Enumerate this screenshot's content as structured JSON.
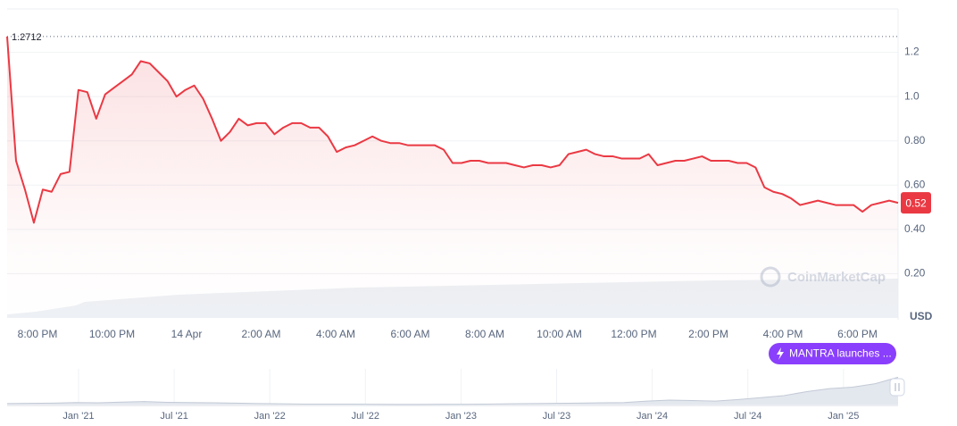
{
  "chart_data": {
    "type": "line",
    "series": [
      {
        "name": "MANTRA",
        "color": "#ea3943",
        "values": [
          1.2712,
          0.71,
          0.58,
          0.43,
          0.58,
          0.57,
          0.65,
          0.66,
          1.03,
          1.02,
          0.9,
          1.01,
          1.04,
          1.07,
          1.1,
          1.16,
          1.15,
          1.11,
          1.07,
          1.0,
          1.03,
          1.05,
          0.99,
          0.9,
          0.8,
          0.84,
          0.9,
          0.87,
          0.88,
          0.88,
          0.83,
          0.86,
          0.88,
          0.88,
          0.86,
          0.86,
          0.82,
          0.75,
          0.77,
          0.78,
          0.8,
          0.82,
          0.8,
          0.79,
          0.79,
          0.78,
          0.78,
          0.78,
          0.78,
          0.76,
          0.7,
          0.7,
          0.71,
          0.71,
          0.7,
          0.7,
          0.7,
          0.69,
          0.68,
          0.69,
          0.69,
          0.68,
          0.69,
          0.74,
          0.75,
          0.76,
          0.74,
          0.73,
          0.73,
          0.72,
          0.72,
          0.72,
          0.74,
          0.69,
          0.7,
          0.71,
          0.71,
          0.72,
          0.73,
          0.71,
          0.71,
          0.71,
          0.7,
          0.7,
          0.68,
          0.59,
          0.57,
          0.56,
          0.54,
          0.51,
          0.52,
          0.53,
          0.52,
          0.51,
          0.51,
          0.51,
          0.48,
          0.51,
          0.52,
          0.53,
          0.52
        ]
      }
    ],
    "xtick_labels": [
      "8:00 PM",
      "10:00 PM",
      "14 Apr",
      "2:00 AM",
      "4:00 AM",
      "6:00 AM",
      "8:00 AM",
      "10:00 AM",
      "12:00 PM",
      "2:00 PM",
      "4:00 PM",
      "6:00 PM"
    ],
    "ylim": [
      0,
      1.4
    ],
    "yticks": [
      1.2,
      {
        "value": 1,
        "label": "1.0"
      },
      {
        "value": 0.8,
        "label": "0.80"
      },
      {
        "value": 0.6,
        "label": "0.60"
      },
      {
        "value": 0.4,
        "label": "0.40"
      },
      {
        "value": 0.2,
        "label": "0.20"
      }
    ],
    "y_unit": "USD",
    "max_price": 1.2712,
    "current_price": 0.52,
    "grid": true,
    "watermark": "CoinMarketCap",
    "annotation": "MANTRA launches ...",
    "navigator": {
      "categories": [
        "Jan '21",
        "Jul '21",
        "Jan '22",
        "Jul '22",
        "Jan '23",
        "Jul '23",
        "Jan '24",
        "Jul '24",
        "Jan '25"
      ],
      "values": [
        0.2,
        0.25,
        0.3,
        0.4,
        0.35,
        0.5,
        0.6,
        0.45,
        0.4,
        0.35,
        0.3,
        0.2,
        0.15,
        0.1,
        0.1,
        0.08,
        0.06,
        0.05,
        0.05,
        0.06,
        0.07,
        0.1,
        0.15,
        0.2,
        0.25,
        0.3,
        0.35,
        0.4,
        0.7,
        0.9,
        0.8,
        0.7,
        1.0,
        1.4,
        1.8,
        2.6,
        3.2,
        3.5,
        4.2,
        5.5
      ],
      "ylim": [
        0,
        7
      ]
    }
  }
}
